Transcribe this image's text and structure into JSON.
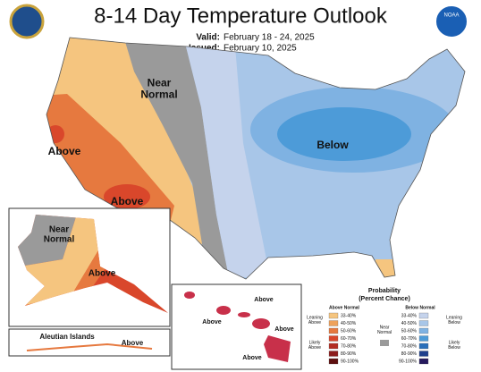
{
  "header": {
    "title": "8-14 Day Temperature Outlook",
    "valid_label": "Valid:",
    "valid": "February 18 - 24, 2025",
    "issued_label": "Issued:",
    "issued": "February 10, 2025",
    "logo": "NOAA"
  },
  "conus": {
    "near_normal": "Near Normal",
    "above_west": "Above",
    "above_southwest": "Above",
    "below": "Below"
  },
  "alaska": {
    "near_normal": "Near Normal",
    "above": "Above",
    "aleutian_title": "Aleutian Islands",
    "aleutian_above": "Above"
  },
  "hawaii": {
    "above_1": "Above",
    "above_2": "Above",
    "above_3": "Above",
    "above_4": "Above"
  },
  "legend": {
    "title": "Probability",
    "subtitle": "(Percent Chance)",
    "above_header": "Above Normal",
    "below_header": "Below Normal",
    "leaning_above": "Leaning Above",
    "likely_above": "Likely Above",
    "near": "Near Normal",
    "near_color": "#9a9a9a",
    "leaning_below": "Leaning Below",
    "likely_below": "Likely Below",
    "above_classes": [
      {
        "label": "33-40%",
        "color": "#f5c57f"
      },
      {
        "label": "40-50%",
        "color": "#eea25b"
      },
      {
        "label": "50-60%",
        "color": "#e6793f"
      },
      {
        "label": "60-70%",
        "color": "#d9472b"
      },
      {
        "label": "70-80%",
        "color": "#b32d23"
      },
      {
        "label": "80-90%",
        "color": "#8c1c1c"
      },
      {
        "label": "90-100%",
        "color": "#5e0f0f"
      }
    ],
    "below_classes": [
      {
        "label": "33-40%",
        "color": "#c5d3ec"
      },
      {
        "label": "40-50%",
        "color": "#a8c6e8"
      },
      {
        "label": "50-60%",
        "color": "#7fb2e2"
      },
      {
        "label": "60-70%",
        "color": "#4d9bd8"
      },
      {
        "label": "70-80%",
        "color": "#2a6fba"
      },
      {
        "label": "80-90%",
        "color": "#1e3f8c"
      },
      {
        "label": "90-100%",
        "color": "#261a5e"
      }
    ]
  }
}
